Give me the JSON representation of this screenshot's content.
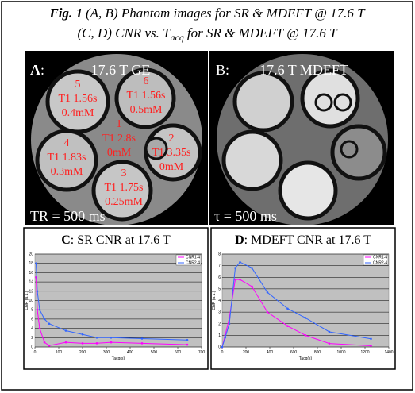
{
  "caption": {
    "fig": "Fig. 1",
    "line1": "(A, B) Phantom images for SR & MDEFT @ 17.6 T",
    "line2a": "(C, D) CNR vs. T",
    "line2sub": "acq",
    "line2b": "for SR & MDEFT @ 17.6 T"
  },
  "panel_a": {
    "letter": "A",
    "colon": ":",
    "title": "17.6 T GE",
    "footer": "TR = 500 ms",
    "vials": [
      {
        "id": "5",
        "t1": "T1 1.56s",
        "conc": "0.4mM"
      },
      {
        "id": "6",
        "t1": "T1 1.56s",
        "conc": "0.5mM"
      },
      {
        "id": "1",
        "t1": "T1 2.8s",
        "conc": "0mM"
      },
      {
        "id": "2",
        "t1": "T1 3.35s",
        "conc": "0mM"
      },
      {
        "id": "4",
        "t1": "T1 1.83s",
        "conc": "0.3mM"
      },
      {
        "id": "3",
        "t1": "T1 1.75s",
        "conc": "0.25mM"
      }
    ]
  },
  "panel_b": {
    "letter": "B:",
    "title": "17.6 T MDEFT",
    "footer": "τ = 500 ms"
  },
  "charts": [
    {
      "type": "line",
      "letter": "C",
      "title": ": SR CNR at 17.6 T",
      "x_label": "Tacq(s)",
      "y_label": "CNR (a.u.)",
      "xlim": [
        0,
        700
      ],
      "xticks": [
        0,
        100,
        200,
        300,
        400,
        500,
        600,
        700
      ],
      "ylim": [
        0,
        20
      ],
      "yticks": [
        0,
        2,
        4,
        6,
        8,
        10,
        12,
        14,
        16,
        18,
        20
      ],
      "x": [
        5,
        10,
        20,
        40,
        60,
        130,
        200,
        260,
        320,
        450,
        640
      ],
      "series": [
        {
          "name": "CNR1-4",
          "color": "#ff00ff",
          "values": [
            15,
            8,
            4,
            1,
            0.3,
            1,
            0.8,
            0.8,
            1,
            0.8,
            0.5
          ]
        },
        {
          "name": "CNR2-4",
          "color": "#3366ff",
          "values": [
            18,
            12,
            8,
            6,
            5,
            3.5,
            2.7,
            2,
            2,
            1.8,
            1.5
          ]
        }
      ]
    },
    {
      "type": "line",
      "letter": "D",
      "title": ": MDEFT CNR at 17.6 T",
      "x_label": "Tacq(s)",
      "y_label": "CNR (a.u.)",
      "xlim": [
        0,
        1400
      ],
      "xticks": [
        0,
        200,
        400,
        600,
        800,
        1000,
        1200,
        1400
      ],
      "ylim": [
        0,
        8
      ],
      "yticks": [
        0,
        1,
        2,
        3,
        4,
        5,
        6,
        7,
        8
      ],
      "x": [
        0,
        25,
        60,
        110,
        150,
        250,
        380,
        550,
        700,
        900,
        1250
      ],
      "series": [
        {
          "name": "CNR1-4",
          "color": "#ff00ff",
          "values": [
            0,
            1,
            2.5,
            5.8,
            5.8,
            5.2,
            3,
            1.8,
            1,
            0.3,
            0.1
          ]
        },
        {
          "name": "CNR2-4",
          "color": "#3366ff",
          "values": [
            0,
            0.8,
            2,
            6.8,
            7.3,
            6.8,
            4.7,
            3.3,
            2.5,
            1.3,
            0.7
          ]
        }
      ]
    }
  ]
}
